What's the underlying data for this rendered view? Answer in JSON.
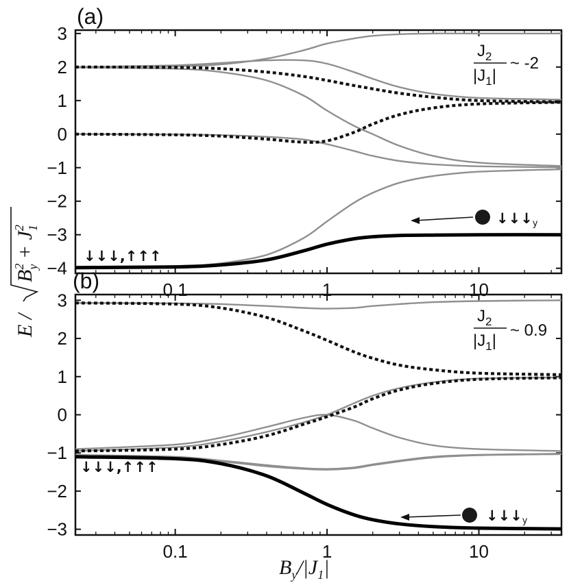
{
  "chart_data": [
    {
      "type": "line",
      "panel_label": "(a)",
      "annotation": {
        "numerator": "J",
        "numerator_sub": "2",
        "denominator": "|J",
        "denominator_sub": "1",
        "denominator_end": "|",
        "relation": "~ -2"
      },
      "state_label_left": "↓↓↓,↑↑↑",
      "state_label_right": "↓↓↓",
      "state_label_right_sub": "y",
      "x_scale": "log",
      "xlim": [
        0.022,
        35
      ],
      "ylim": [
        -4.15,
        3.1
      ],
      "xticks": [
        0.1,
        1,
        10
      ],
      "xtick_labels": [
        "0.1",
        "1",
        "10"
      ],
      "yticks": [
        3,
        2,
        1,
        0,
        -1,
        -2,
        -3,
        -4
      ],
      "ytick_labels": [
        "3",
        "2",
        "1",
        "0",
        "−1",
        "−2",
        "−3",
        "−4"
      ],
      "series": [
        {
          "style": "gray",
          "x": [
            0.022,
            0.1,
            0.2,
            0.4,
            0.7,
            1,
            1.5,
            2,
            3,
            5,
            10,
            35
          ],
          "y": [
            2.0,
            2.02,
            2.08,
            2.25,
            2.5,
            2.7,
            2.85,
            2.93,
            2.98,
            3.0,
            3.0,
            3.0
          ]
        },
        {
          "style": "gray",
          "x": [
            0.022,
            0.1,
            0.2,
            0.4,
            0.7,
            1,
            1.5,
            2,
            3,
            5,
            10,
            35
          ],
          "y": [
            2.0,
            2.05,
            2.12,
            2.2,
            2.2,
            2.1,
            1.85,
            1.65,
            1.4,
            1.2,
            1.08,
            1.03
          ]
        },
        {
          "style": "gray",
          "x": [
            0.022,
            0.1,
            0.2,
            0.4,
            0.7,
            1,
            1.5,
            2,
            3,
            5,
            10,
            35
          ],
          "y": [
            1.99,
            1.95,
            1.85,
            1.6,
            1.15,
            0.7,
            0.25,
            0.0,
            -0.35,
            -0.65,
            -0.85,
            -0.95
          ]
        },
        {
          "style": "gray",
          "x": [
            0.022,
            0.1,
            0.2,
            0.4,
            0.7,
            1,
            1.5,
            2,
            3,
            5,
            10,
            35
          ],
          "y": [
            0.0,
            -0.01,
            -0.03,
            -0.08,
            -0.16,
            -0.3,
            -0.5,
            -0.65,
            -0.8,
            -0.9,
            -0.96,
            -0.99
          ]
        },
        {
          "style": "gray",
          "x": [
            0.022,
            0.1,
            0.2,
            0.4,
            0.7,
            1,
            1.5,
            2,
            3,
            5,
            10,
            35
          ],
          "y": [
            -3.95,
            -3.93,
            -3.85,
            -3.6,
            -3.1,
            -2.6,
            -2.05,
            -1.75,
            -1.45,
            -1.25,
            -1.12,
            -1.05
          ]
        },
        {
          "style": "dotted",
          "x": [
            0.022,
            0.1,
            0.2,
            0.4,
            0.7,
            1,
            1.5,
            2,
            3,
            5,
            10,
            35
          ],
          "y": [
            2.0,
            1.99,
            1.95,
            1.85,
            1.72,
            1.6,
            1.45,
            1.35,
            1.22,
            1.1,
            1.0,
            0.96
          ]
        },
        {
          "style": "dotted",
          "x": [
            0.022,
            0.1,
            0.2,
            0.4,
            0.7,
            1,
            1.5,
            2,
            3,
            5,
            10,
            35
          ],
          "y": [
            0.0,
            -0.02,
            -0.06,
            -0.15,
            -0.24,
            -0.2,
            0.05,
            0.3,
            0.58,
            0.78,
            0.9,
            0.95
          ]
        },
        {
          "style": "thick",
          "x": [
            0.022,
            0.1,
            0.2,
            0.4,
            0.7,
            1,
            1.5,
            2,
            3,
            5,
            10,
            35
          ],
          "y": [
            -3.98,
            -3.96,
            -3.9,
            -3.75,
            -3.48,
            -3.28,
            -3.12,
            -3.06,
            -3.02,
            -3.01,
            -3.0,
            -3.0
          ]
        }
      ]
    },
    {
      "type": "line",
      "panel_label": "(b)",
      "annotation": {
        "numerator": "J",
        "numerator_sub": "2",
        "denominator": "|J",
        "denominator_sub": "1",
        "denominator_end": "|",
        "relation": "~ 0.9"
      },
      "state_label_left": "↓↓↓,↑↑↑",
      "state_label_right": "↓↓↓",
      "state_label_right_sub": "y",
      "x_scale": "log",
      "xlim": [
        0.022,
        35
      ],
      "ylim": [
        -3.15,
        3.15
      ],
      "xticks": [
        0.1,
        1,
        10
      ],
      "xtick_labels": [
        "0.1",
        "1",
        "10"
      ],
      "yticks": [
        3,
        2,
        1,
        0,
        -1,
        -2,
        -3
      ],
      "ytick_labels": [
        "3",
        "2",
        "1",
        "0",
        "−1",
        "−2",
        "−3"
      ],
      "series": [
        {
          "style": "gray",
          "x": [
            0.022,
            0.1,
            0.2,
            0.4,
            0.7,
            1,
            1.5,
            2,
            3,
            5,
            10,
            35
          ],
          "y": [
            2.93,
            2.92,
            2.9,
            2.85,
            2.8,
            2.78,
            2.8,
            2.85,
            2.9,
            2.95,
            2.98,
            3.0
          ]
        },
        {
          "style": "gray",
          "x": [
            0.022,
            0.1,
            0.2,
            0.4,
            0.7,
            1,
            1.5,
            2,
            3,
            5,
            10,
            35
          ],
          "y": [
            -0.95,
            -0.85,
            -0.7,
            -0.45,
            -0.2,
            0.0,
            0.3,
            0.5,
            0.7,
            0.85,
            0.95,
            0.98
          ]
        },
        {
          "style": "gray",
          "x": [
            0.022,
            0.1,
            0.2,
            0.4,
            0.7,
            1,
            1.5,
            2,
            3,
            5,
            10,
            35
          ],
          "y": [
            -0.9,
            -0.78,
            -0.6,
            -0.32,
            -0.08,
            0.0,
            -0.15,
            -0.35,
            -0.6,
            -0.8,
            -0.9,
            -0.95
          ]
        },
        {
          "style": "gray",
          "x": [
            0.022,
            0.1,
            0.2,
            0.4,
            0.7,
            1,
            1.5,
            2,
            3,
            5,
            10,
            35
          ],
          "y": [
            -1.05,
            -1.1,
            -1.2,
            -1.32,
            -1.4,
            -1.42,
            -1.38,
            -1.3,
            -1.2,
            -1.1,
            -1.05,
            -1.02
          ]
        },
        {
          "style": "gray",
          "x": [
            0.022,
            0.1,
            0.2,
            0.4,
            0.7,
            1,
            1.5,
            2,
            3,
            5,
            10,
            35
          ],
          "y": [
            -1.08,
            -1.12,
            -1.22,
            -1.35,
            -1.42,
            -1.44,
            -1.4,
            -1.32,
            -1.22,
            -1.12,
            -1.06,
            -1.03
          ]
        },
        {
          "style": "dotted",
          "x": [
            0.022,
            0.1,
            0.2,
            0.4,
            0.7,
            1,
            1.5,
            2,
            3,
            5,
            10,
            35
          ],
          "y": [
            2.93,
            2.9,
            2.8,
            2.55,
            2.2,
            1.95,
            1.65,
            1.48,
            1.3,
            1.18,
            1.09,
            1.05
          ]
        },
        {
          "style": "dotted",
          "x": [
            0.022,
            0.1,
            0.2,
            0.4,
            0.7,
            1,
            1.5,
            2,
            3,
            5,
            10,
            35
          ],
          "y": [
            -0.95,
            -0.9,
            -0.78,
            -0.55,
            -0.25,
            -0.05,
            0.2,
            0.42,
            0.65,
            0.82,
            0.93,
            0.97
          ]
        },
        {
          "style": "thick",
          "x": [
            0.022,
            0.1,
            0.2,
            0.4,
            0.7,
            1,
            1.5,
            2,
            3,
            5,
            10,
            35
          ],
          "y": [
            -1.1,
            -1.15,
            -1.28,
            -1.6,
            -2.05,
            -2.35,
            -2.62,
            -2.75,
            -2.86,
            -2.93,
            -2.97,
            -2.99
          ]
        }
      ]
    }
  ],
  "y_axis_label": "E / √(B²y + J²1)",
  "x_axis_label": "By/|J1|"
}
